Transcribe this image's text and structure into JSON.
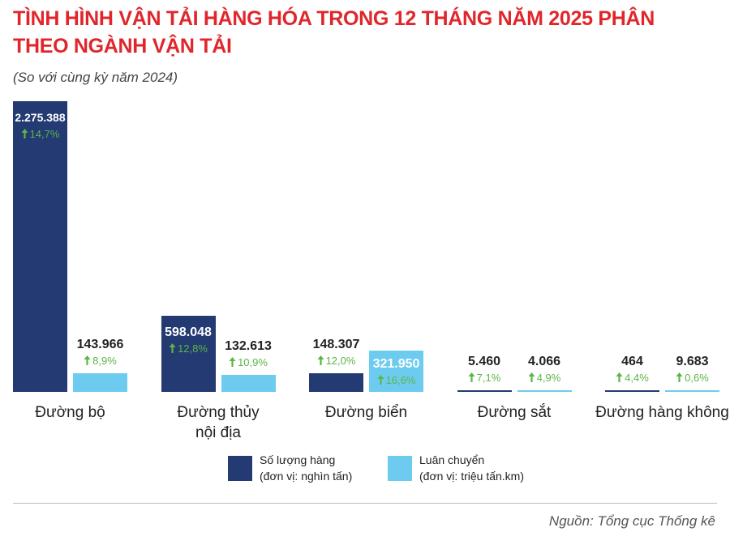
{
  "chart_data": {
    "type": "bar",
    "title": "TÌNH HÌNH VẬN TẢI HÀNG HÓA TRONG 12 THÁNG NĂM 2025 PHÂN THEO NGÀNH VẬN TẢI",
    "subtitle": "(So với cùng kỳ năm 2024)",
    "categories": [
      "Đường bộ",
      "Đường thủy\nnội địa",
      "Đường biển",
      "Đường sắt",
      "Đường hàng không"
    ],
    "series": [
      {
        "name": "Số lượng hàng",
        "unit": "(đơn vị: nghìn tấn)",
        "color": "#233a72",
        "values": [
          2275388,
          598048,
          148307,
          5460,
          464
        ],
        "value_labels": [
          "2.275.388",
          "598.048",
          "148.307",
          "5.460",
          "464"
        ],
        "growth": [
          14.7,
          12.8,
          12.0,
          7.1,
          4.4
        ],
        "growth_labels": [
          "14,7%",
          "12,8%",
          "12,0%",
          "7,1%",
          "4,4%"
        ]
      },
      {
        "name": "Luân chuyển",
        "unit": "(đơn vị: triệu tấn.km)",
        "color": "#6dcbf0",
        "values": [
          143966,
          132613,
          321950,
          4066,
          9683
        ],
        "value_labels": [
          "143.966",
          "132.613",
          "321.950",
          "4.066",
          "9.683"
        ],
        "growth": [
          8.9,
          10.9,
          16.6,
          4.9,
          0.6
        ],
        "growth_labels": [
          "8,9%",
          "10,9%",
          "16,6%",
          "4,9%",
          "0,6%"
        ]
      }
    ],
    "growth_color": "#5db545",
    "source": "Nguồn: Tổng cục Thống kê"
  }
}
